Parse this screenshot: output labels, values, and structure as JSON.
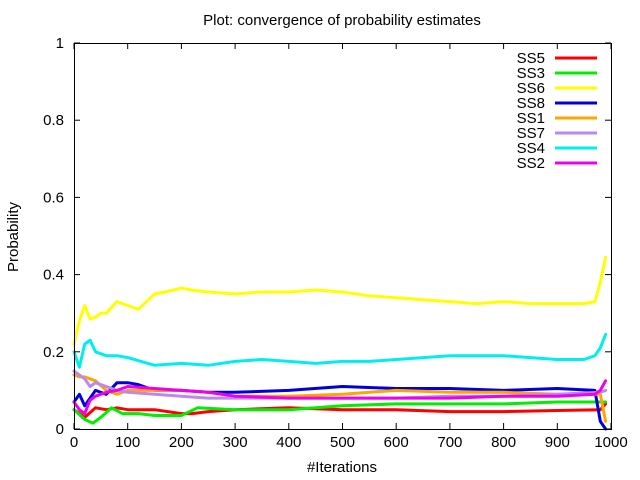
{
  "chart_data": {
    "type": "line",
    "title": "Plot: convergence of probability estimates",
    "xlabel": "#Iterations",
    "ylabel": "Probability",
    "xlim": [
      0,
      1000
    ],
    "ylim": [
      0,
      1
    ],
    "xticks": [
      "0",
      "100",
      "200",
      "300",
      "400",
      "500",
      "600",
      "700",
      "800",
      "900",
      "1000"
    ],
    "yticks": [
      "0",
      "0.2",
      "0.4",
      "0.6",
      "0.8",
      "1"
    ],
    "grid": false,
    "legend_position": "top-right",
    "series": [
      {
        "name": "SS5",
        "color": "#ff0000",
        "x": [
          0,
          20,
          40,
          60,
          80,
          100,
          150,
          200,
          220,
          250,
          300,
          400,
          500,
          600,
          700,
          800,
          900,
          980,
          990
        ],
        "y": [
          0.05,
          0.03,
          0.055,
          0.05,
          0.055,
          0.05,
          0.05,
          0.04,
          0.04,
          0.045,
          0.05,
          0.055,
          0.05,
          0.05,
          0.045,
          0.045,
          0.048,
          0.05,
          0.065
        ]
      },
      {
        "name": "SS3",
        "color": "#00ee00",
        "x": [
          0,
          20,
          35,
          50,
          70,
          90,
          120,
          150,
          200,
          230,
          300,
          400,
          500,
          600,
          700,
          800,
          900,
          980,
          990
        ],
        "y": [
          0.05,
          0.025,
          0.015,
          0.03,
          0.055,
          0.04,
          0.04,
          0.035,
          0.035,
          0.055,
          0.05,
          0.05,
          0.06,
          0.065,
          0.065,
          0.065,
          0.07,
          0.07,
          0.07
        ]
      },
      {
        "name": "SS6",
        "color": "#ffff00",
        "x": [
          0,
          10,
          20,
          30,
          40,
          50,
          60,
          80,
          100,
          120,
          150,
          170,
          200,
          220,
          250,
          300,
          350,
          400,
          450,
          500,
          550,
          600,
          650,
          700,
          750,
          800,
          850,
          900,
          950,
          970,
          980,
          990
        ],
        "y": [
          0.22,
          0.28,
          0.32,
          0.285,
          0.29,
          0.3,
          0.3,
          0.33,
          0.32,
          0.31,
          0.35,
          0.355,
          0.365,
          0.36,
          0.355,
          0.35,
          0.355,
          0.355,
          0.36,
          0.355,
          0.345,
          0.34,
          0.335,
          0.33,
          0.325,
          0.33,
          0.325,
          0.325,
          0.325,
          0.33,
          0.38,
          0.445
        ]
      },
      {
        "name": "SS8",
        "color": "#0000dd",
        "x": [
          0,
          10,
          20,
          30,
          40,
          60,
          80,
          100,
          120,
          150,
          200,
          250,
          300,
          400,
          500,
          600,
          700,
          800,
          900,
          970,
          980,
          990
        ],
        "y": [
          0.07,
          0.09,
          0.06,
          0.08,
          0.1,
          0.09,
          0.12,
          0.12,
          0.115,
          0.1,
          0.1,
          0.095,
          0.095,
          0.1,
          0.11,
          0.105,
          0.105,
          0.1,
          0.105,
          0.1,
          0.02,
          0.0
        ]
      },
      {
        "name": "SS1",
        "color": "#ffa500",
        "x": [
          0,
          10,
          20,
          40,
          60,
          80,
          100,
          150,
          200,
          250,
          300,
          400,
          500,
          600,
          700,
          800,
          900,
          980,
          990
        ],
        "y": [
          0.14,
          0.135,
          0.135,
          0.125,
          0.1,
          0.09,
          0.1,
          0.1,
          0.1,
          0.095,
          0.085,
          0.085,
          0.09,
          0.1,
          0.095,
          0.095,
          0.09,
          0.09,
          0.02
        ]
      },
      {
        "name": "SS7",
        "color": "#bb88ee",
        "x": [
          0,
          10,
          20,
          30,
          40,
          60,
          80,
          100,
          150,
          200,
          250,
          300,
          400,
          500,
          600,
          700,
          800,
          900,
          980,
          990
        ],
        "y": [
          0.15,
          0.14,
          0.13,
          0.11,
          0.12,
          0.11,
          0.1,
          0.095,
          0.09,
          0.085,
          0.08,
          0.08,
          0.08,
          0.08,
          0.08,
          0.085,
          0.085,
          0.09,
          0.095,
          0.1
        ]
      },
      {
        "name": "SS4",
        "color": "#00eeee",
        "x": [
          0,
          10,
          20,
          30,
          40,
          60,
          80,
          100,
          150,
          200,
          250,
          300,
          350,
          400,
          450,
          500,
          550,
          600,
          650,
          700,
          750,
          800,
          850,
          900,
          950,
          970,
          980,
          990
        ],
        "y": [
          0.2,
          0.16,
          0.22,
          0.23,
          0.2,
          0.19,
          0.19,
          0.185,
          0.165,
          0.17,
          0.165,
          0.175,
          0.18,
          0.175,
          0.17,
          0.175,
          0.175,
          0.18,
          0.185,
          0.19,
          0.19,
          0.19,
          0.185,
          0.18,
          0.18,
          0.19,
          0.21,
          0.245
        ]
      },
      {
        "name": "SS2",
        "color": "#ee00ee",
        "x": [
          0,
          10,
          20,
          30,
          40,
          60,
          80,
          100,
          150,
          200,
          250,
          300,
          400,
          500,
          600,
          700,
          800,
          900,
          970,
          980,
          990
        ],
        "y": [
          0.07,
          0.05,
          0.04,
          0.075,
          0.085,
          0.095,
          0.1,
          0.11,
          0.105,
          0.1,
          0.095,
          0.085,
          0.08,
          0.08,
          0.08,
          0.08,
          0.085,
          0.085,
          0.09,
          0.1,
          0.125
        ]
      }
    ]
  }
}
